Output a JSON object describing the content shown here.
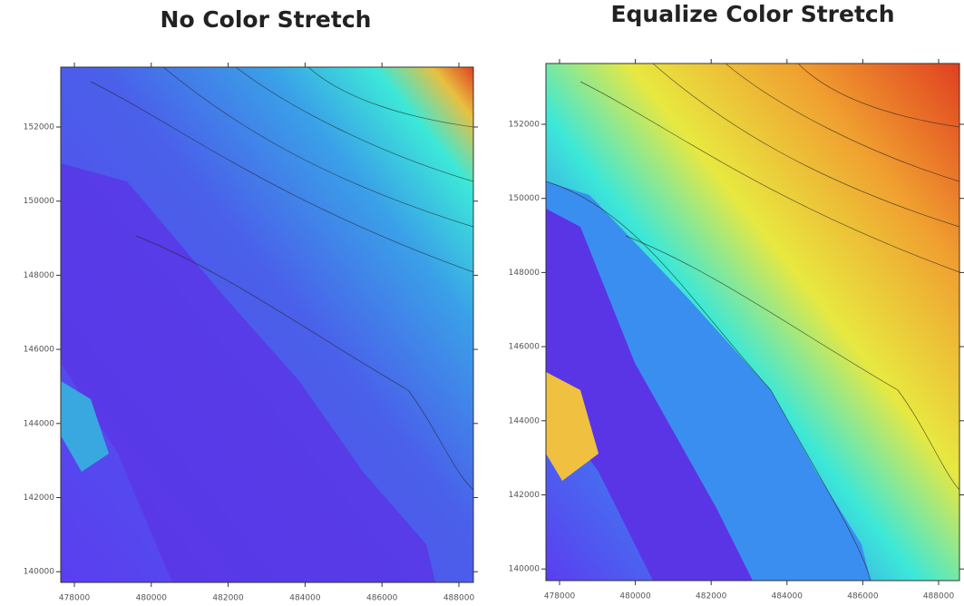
{
  "panels": [
    {
      "title": "No Color Stretch",
      "x_tick_labels": [
        "478000",
        "480000",
        "482000",
        "484000",
        "486000",
        "488000"
      ],
      "y_tick_labels": [
        "152000",
        "150000",
        "148000",
        "146000",
        "144000",
        "142000",
        "140000"
      ]
    },
    {
      "title": "Equalize Color Stretch",
      "x_tick_labels": [
        "478000",
        "480000",
        "482000",
        "484000",
        "486000",
        "488000"
      ],
      "y_tick_labels": [
        "152000",
        "150000",
        "148000",
        "146000",
        "144000",
        "142000",
        "140000"
      ]
    }
  ]
}
